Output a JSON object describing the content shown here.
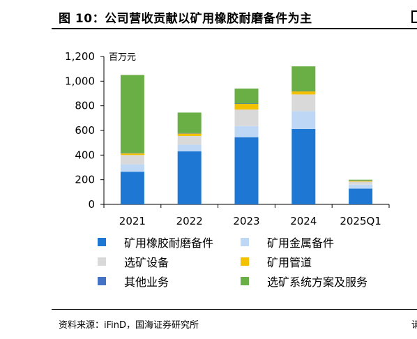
{
  "header": {
    "title": "图 10：公司营收贡献以矿用橡胶耐磨备件为主"
  },
  "footer": {
    "source": "资料来源：iFinD，国海证券研究所",
    "right_fragment": "请"
  },
  "chart_data": {
    "type": "bar",
    "stacked": true,
    "unit_label": "百万元",
    "categories": [
      "2021",
      "2022",
      "2023",
      "2024",
      "2025Q1"
    ],
    "ylim": [
      0,
      1200
    ],
    "yticks": [
      0,
      200,
      400,
      600,
      800,
      1000,
      1200
    ],
    "ytick_labels": [
      "0",
      "200",
      "400",
      "600",
      "800",
      "1,000",
      "1,200"
    ],
    "grid": false,
    "legend_position": "bottom",
    "series": [
      {
        "name": "矿用橡胶耐磨备件",
        "color": "#1F77D4",
        "values": [
          265,
          430,
          545,
          612,
          128
        ]
      },
      {
        "name": "矿用金属备件",
        "color": "#BDD7F5",
        "values": [
          60,
          55,
          90,
          145,
          32
        ]
      },
      {
        "name": "选矿设备",
        "color": "#D9D9D9",
        "values": [
          75,
          70,
          135,
          135,
          25
        ]
      },
      {
        "name": "矿用管道",
        "color": "#F2C200",
        "values": [
          15,
          20,
          45,
          25,
          8
        ]
      },
      {
        "name": "其他业务",
        "color": "#4472C4",
        "values": [
          3,
          3,
          3,
          3,
          1
        ]
      },
      {
        "name": "选矿系统方案及服务",
        "color": "#6AAF45",
        "values": [
          632,
          167,
          122,
          200,
          6
        ]
      }
    ]
  }
}
